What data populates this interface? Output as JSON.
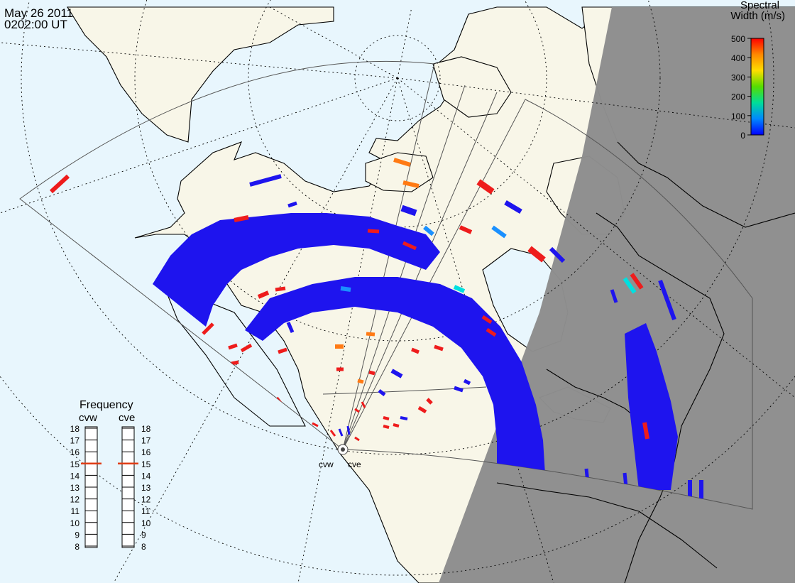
{
  "header": {
    "date": "May 26 2011",
    "time": "0202:00 UT"
  },
  "colorbar": {
    "title_line1": "Spectral",
    "title_line2": "Width (m/s)",
    "ticks": [
      "500",
      "400",
      "300",
      "200",
      "100",
      "0"
    ],
    "range": [
      0,
      500
    ],
    "gradient": [
      "#ff0000",
      "#ff8800",
      "#ffdd00",
      "#55dd00",
      "#00dd99",
      "#0088ff",
      "#0000ff"
    ]
  },
  "radars": {
    "west_code": "cvw",
    "east_code": "cve"
  },
  "frequency_panel": {
    "title": "Frequency",
    "west_label": "cvw",
    "east_label": "cve",
    "scale_min": 8,
    "scale_max": 18,
    "tick_labels": [
      "18",
      "17",
      "16",
      "15",
      "14",
      "13",
      "12",
      "11",
      "10",
      "9",
      "8"
    ],
    "west_value": 15,
    "east_value": 15
  },
  "colors": {
    "ocean": "#e8f6fd",
    "land": "#f8f6e8",
    "night": "#8e8e8e",
    "dense_echo": "#1e14ee",
    "high_width": "#ee1c1c",
    "marker": "#e03c14"
  }
}
